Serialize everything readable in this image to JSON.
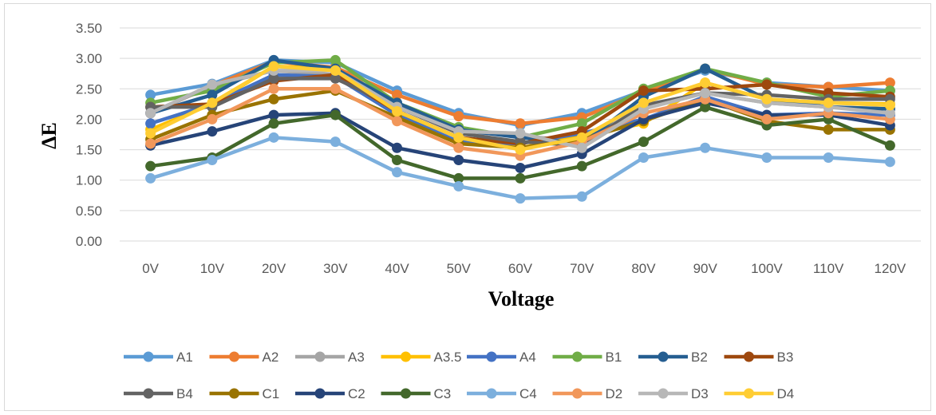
{
  "chart_data": {
    "type": "line",
    "title": "",
    "xlabel": "Voltage",
    "ylabel": "ΔE",
    "categories": [
      "0V",
      "10V",
      "20V",
      "30V",
      "40V",
      "50V",
      "60V",
      "70V",
      "80V",
      "90V",
      "100V",
      "110V",
      "120V"
    ],
    "yticks": [
      "0.00",
      "0.50",
      "1.00",
      "1.50",
      "2.00",
      "2.50",
      "3.00",
      "3.50"
    ],
    "ylim": [
      0,
      3.5
    ],
    "grid": "horizontal",
    "legend_position": "bottom",
    "series": [
      {
        "name": "A1",
        "color": "#5B9BD5",
        "values": [
          2.4,
          2.58,
          2.97,
          2.93,
          2.47,
          2.1,
          1.9,
          2.1,
          2.47,
          2.8,
          2.6,
          2.53,
          2.47
        ]
      },
      {
        "name": "A2",
        "color": "#ED7D31",
        "values": [
          2.1,
          2.55,
          2.95,
          2.85,
          2.4,
          2.05,
          1.93,
          2.03,
          2.45,
          2.83,
          2.57,
          2.53,
          2.6
        ]
      },
      {
        "name": "A3",
        "color": "#A5A5A5",
        "values": [
          2.1,
          2.55,
          2.8,
          2.73,
          2.2,
          1.8,
          1.73,
          1.63,
          2.2,
          2.43,
          2.27,
          2.2,
          2.17
        ]
      },
      {
        "name": "A3.5",
        "color": "#FFC000",
        "values": [
          1.83,
          2.25,
          2.87,
          2.83,
          2.13,
          1.7,
          1.53,
          1.73,
          1.93,
          2.6,
          2.33,
          2.27,
          2.25
        ]
      },
      {
        "name": "A4",
        "color": "#4472C4",
        "values": [
          1.93,
          2.25,
          2.73,
          2.7,
          2.07,
          1.63,
          1.6,
          1.77,
          2.0,
          2.37,
          2.07,
          2.1,
          2.07
        ]
      },
      {
        "name": "B1",
        "color": "#70AD47",
        "values": [
          2.27,
          2.47,
          2.93,
          2.97,
          2.27,
          1.87,
          1.7,
          1.93,
          2.5,
          2.83,
          2.6,
          2.37,
          2.47
        ]
      },
      {
        "name": "B2",
        "color": "#255E91",
        "values": [
          2.1,
          2.4,
          2.97,
          2.83,
          2.27,
          1.83,
          1.7,
          1.6,
          2.37,
          2.83,
          2.33,
          2.2,
          2.17
        ]
      },
      {
        "name": "B3",
        "color": "#9E480E",
        "values": [
          2.2,
          2.25,
          2.63,
          2.73,
          2.13,
          1.7,
          1.6,
          1.8,
          2.47,
          2.5,
          2.57,
          2.43,
          2.37
        ]
      },
      {
        "name": "B4",
        "color": "#636363",
        "values": [
          2.2,
          2.2,
          2.67,
          2.67,
          2.2,
          1.77,
          1.63,
          1.57,
          2.23,
          2.43,
          2.4,
          2.33,
          2.33
        ]
      },
      {
        "name": "C1",
        "color": "#997300",
        "values": [
          1.67,
          2.07,
          2.33,
          2.47,
          2.03,
          1.6,
          1.53,
          1.67,
          1.97,
          2.33,
          1.97,
          1.83,
          1.83
        ]
      },
      {
        "name": "C2",
        "color": "#264478",
        "values": [
          1.57,
          1.8,
          2.07,
          2.1,
          1.53,
          1.33,
          1.2,
          1.43,
          2.0,
          2.27,
          2.07,
          2.07,
          1.9
        ]
      },
      {
        "name": "C3",
        "color": "#43682B",
        "values": [
          1.23,
          1.37,
          1.93,
          2.07,
          1.33,
          1.03,
          1.03,
          1.23,
          1.63,
          2.2,
          1.9,
          2.0,
          1.57
        ]
      },
      {
        "name": "C4",
        "color": "#7CAFDD",
        "values": [
          1.03,
          1.33,
          1.7,
          1.63,
          1.13,
          0.9,
          0.7,
          0.73,
          1.37,
          1.53,
          1.37,
          1.37,
          1.3
        ]
      },
      {
        "name": "D2",
        "color": "#F1975A",
        "values": [
          1.6,
          2.0,
          2.5,
          2.5,
          1.97,
          1.53,
          1.4,
          1.63,
          2.1,
          2.33,
          2.0,
          2.1,
          2.0
        ]
      },
      {
        "name": "D3",
        "color": "#B7B7B7",
        "values": [
          2.1,
          2.57,
          2.8,
          2.8,
          2.2,
          1.8,
          1.77,
          1.53,
          2.17,
          2.43,
          2.27,
          2.2,
          2.1
        ]
      },
      {
        "name": "D4",
        "color": "#FFCD33",
        "values": [
          1.77,
          2.27,
          2.87,
          2.8,
          2.13,
          1.7,
          1.5,
          1.7,
          2.27,
          2.6,
          2.33,
          2.27,
          2.23
        ]
      }
    ]
  }
}
